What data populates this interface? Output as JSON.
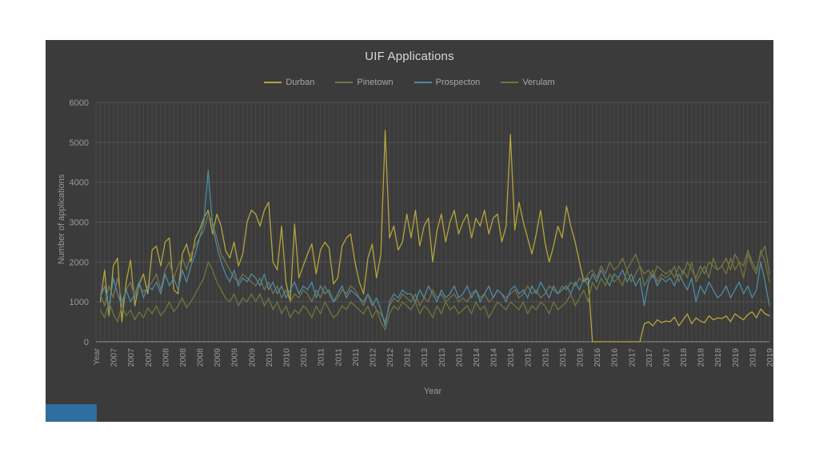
{
  "slide": {
    "background": "#3b3b3b",
    "accent_color": "#2f6e9e"
  },
  "chart_data": {
    "type": "line",
    "title": "UIF Applications",
    "xlabel": "Year",
    "ylabel": "Number of applications",
    "ylim": [
      0,
      6000
    ],
    "y_ticks": [
      0,
      1000,
      2000,
      3000,
      4000,
      5000,
      6000
    ],
    "grid": true,
    "legend_position": "top",
    "x_tick_labels": [
      "Year",
      "2007",
      "2007",
      "2007",
      "2008",
      "2008",
      "2008",
      "2009",
      "2009",
      "2009",
      "2010",
      "2010",
      "2010",
      "2011",
      "2011",
      "2011",
      "2012",
      "2012",
      "2012",
      "2013",
      "2013",
      "2013",
      "2014",
      "2014",
      "2014",
      "2015",
      "2015",
      "2015",
      "2016",
      "2016",
      "2016",
      "2017",
      "2017",
      "2017",
      "2018",
      "2018",
      "2018",
      "2019",
      "2019",
      "2019"
    ],
    "series": [
      {
        "name": "Durban",
        "color": "#b6a53c",
        "values": [
          1000,
          1800,
          650,
          1900,
          2100,
          500,
          1500,
          2050,
          900,
          1450,
          1700,
          1200,
          2300,
          2400,
          1900,
          2500,
          2600,
          1300,
          1200,
          2200,
          2450,
          2000,
          2600,
          2800,
          3100,
          3300,
          2700,
          3200,
          2900,
          2300,
          2100,
          2500,
          1900,
          2200,
          3000,
          3300,
          3200,
          2900,
          3300,
          3500,
          2000,
          1800,
          2900,
          1500,
          1000,
          2950,
          1600,
          1900,
          2200,
          2450,
          1700,
          2300,
          2500,
          2350,
          1450,
          1600,
          2400,
          2600,
          2700,
          2000,
          1500,
          1200,
          2100,
          2450,
          1600,
          2200,
          5300,
          2600,
          2900,
          2300,
          2500,
          3200,
          2600,
          3300,
          2400,
          2900,
          3100,
          2000,
          2800,
          3200,
          2500,
          3000,
          3300,
          2700,
          3000,
          3200,
          2600,
          3100,
          2900,
          3300,
          2700,
          3100,
          3200,
          2500,
          2900,
          5200,
          2800,
          3500,
          3000,
          2600,
          2200,
          2700,
          3300,
          2500,
          2000,
          2400,
          2900,
          2600,
          3400,
          2900,
          2500,
          2000,
          1500,
          1600,
          0,
          0,
          0,
          0,
          0,
          0,
          0,
          0,
          0,
          0,
          0,
          0,
          450,
          500,
          400,
          550,
          480,
          520,
          500,
          620,
          400,
          550,
          700,
          450,
          600,
          520,
          480,
          650,
          550,
          600,
          580,
          650,
          500,
          700,
          620,
          550,
          680,
          750,
          600,
          820,
          700,
          650
        ]
      },
      {
        "name": "Pinetown",
        "color": "#77744a",
        "values": [
          1200,
          900,
          1400,
          1100,
          1600,
          1000,
          1300,
          1500,
          1100,
          1400,
          1250,
          1350,
          1500,
          1700,
          1300,
          1800,
          2000,
          1600,
          1900,
          2100,
          1800,
          2200,
          2400,
          2600,
          2800,
          3200,
          3000,
          2600,
          2200,
          2000,
          1800,
          1600,
          1500,
          1700,
          1600,
          1500,
          1400,
          1600,
          1300,
          1500,
          1200,
          1400,
          1100,
          1300,
          1000,
          1200,
          1100,
          1300,
          1200,
          1000,
          1300,
          1100,
          1400,
          1200,
          1000,
          1100,
          1300,
          1200,
          1400,
          1300,
          1100,
          900,
          1200,
          1000,
          800,
          700,
          500,
          900,
          1100,
          1000,
          1200,
          1100,
          1000,
          1200,
          900,
          1100,
          1000,
          1300,
          1100,
          1200,
          1000,
          1100,
          1200,
          1000,
          1100,
          1000,
          1200,
          1300,
          1100,
          1200,
          1000,
          1100,
          1300,
          1200,
          1100,
          1200,
          1300,
          1100,
          1200,
          1400,
          1200,
          1300,
          1100,
          1200,
          1400,
          1300,
          1200,
          1400,
          1300,
          1500,
          1400,
          1600,
          1500,
          1700,
          1800,
          1600,
          1900,
          1700,
          2000,
          1800,
          1900,
          2100,
          1800,
          2000,
          2200,
          1900,
          1700,
          1800,
          1600,
          1900,
          1800,
          1700,
          1800,
          1600,
          1900,
          1700,
          2000,
          1800,
          1600,
          1900,
          1700,
          2000,
          1900,
          1800,
          1900,
          2100,
          1800,
          2200,
          2000,
          1900,
          2300,
          2000,
          1800,
          2200,
          2400,
          1700
        ]
      },
      {
        "name": "Prospecton",
        "color": "#4e8ba6",
        "values": [
          1100,
          1400,
          800,
          1600,
          1200,
          900,
          1300,
          1000,
          1200,
          1500,
          1100,
          1400,
          1300,
          1500,
          1200,
          1700,
          1400,
          1600,
          1300,
          1800,
          1500,
          1900,
          2200,
          2600,
          3000,
          4300,
          2900,
          2400,
          2000,
          1700,
          1500,
          1800,
          1400,
          1600,
          1500,
          1700,
          1600,
          1400,
          1700,
          1300,
          1500,
          1200,
          1400,
          1100,
          1300,
          1500,
          1200,
          1400,
          1300,
          1500,
          1100,
          1400,
          1200,
          1300,
          1000,
          1200,
          1400,
          1100,
          1300,
          1200,
          1100,
          1000,
          1200,
          900,
          1100,
          800,
          400,
          1000,
          1200,
          1100,
          1300,
          1200,
          1200,
          1000,
          1300,
          1100,
          1400,
          1200,
          1000,
          1300,
          1100,
          1200,
          1400,
          1100,
          1200,
          1400,
          1100,
          1300,
          1000,
          1200,
          1400,
          1100,
          1300,
          1200,
          1000,
          1300,
          1400,
          1200,
          1300,
          1100,
          1400,
          1200,
          1500,
          1300,
          1100,
          1400,
          1200,
          1300,
          1400,
          1200,
          1500,
          1300,
          1600,
          1400,
          1700,
          1500,
          1800,
          1600,
          1400,
          1700,
          1600,
          1800,
          1500,
          1700,
          1400,
          1600,
          900,
          1500,
          1700,
          1400,
          1600,
          1500,
          1600,
          1400,
          1700,
          1500,
          1300,
          1600,
          1000,
          1400,
          1200,
          1500,
          1300,
          1100,
          1200,
          1400,
          1100,
          1300,
          1500,
          1200,
          1400,
          1100,
          1300,
          2000,
          1500,
          900
        ]
      },
      {
        "name": "Verulam",
        "color": "#70763b",
        "values": [
          800,
          600,
          1000,
          700,
          500,
          900,
          650,
          800,
          550,
          750,
          600,
          850,
          700,
          900,
          650,
          800,
          1000,
          750,
          900,
          1100,
          850,
          1000,
          1200,
          1400,
          1600,
          2000,
          1800,
          1500,
          1300,
          1100,
          1000,
          1200,
          900,
          1100,
          1000,
          1200,
          1000,
          1200,
          900,
          1100,
          800,
          1000,
          700,
          900,
          600,
          800,
          700,
          900,
          800,
          600,
          900,
          700,
          1000,
          800,
          600,
          700,
          900,
          800,
          1000,
          900,
          800,
          700,
          900,
          600,
          800,
          500,
          300,
          700,
          900,
          800,
          1000,
          900,
          800,
          1000,
          700,
          900,
          800,
          600,
          900,
          700,
          1000,
          800,
          900,
          700,
          800,
          900,
          700,
          1000,
          800,
          900,
          600,
          800,
          1000,
          900,
          800,
          1000,
          900,
          800,
          1000,
          700,
          900,
          800,
          1000,
          900,
          700,
          1000,
          800,
          900,
          1000,
          1200,
          900,
          1100,
          1300,
          1000,
          1500,
          1300,
          1600,
          1400,
          1700,
          1500,
          1600,
          1400,
          1800,
          1500,
          1700,
          1900,
          1400,
          1600,
          1800,
          1500,
          1700,
          1600,
          1700,
          1900,
          1500,
          1800,
          1600,
          2000,
          1500,
          1700,
          1900,
          1600,
          2100,
          1800,
          1900,
          1700,
          2100,
          1800,
          2000,
          1600,
          2200,
          1900,
          1700,
          2300,
          2000,
          1500
        ]
      }
    ]
  }
}
